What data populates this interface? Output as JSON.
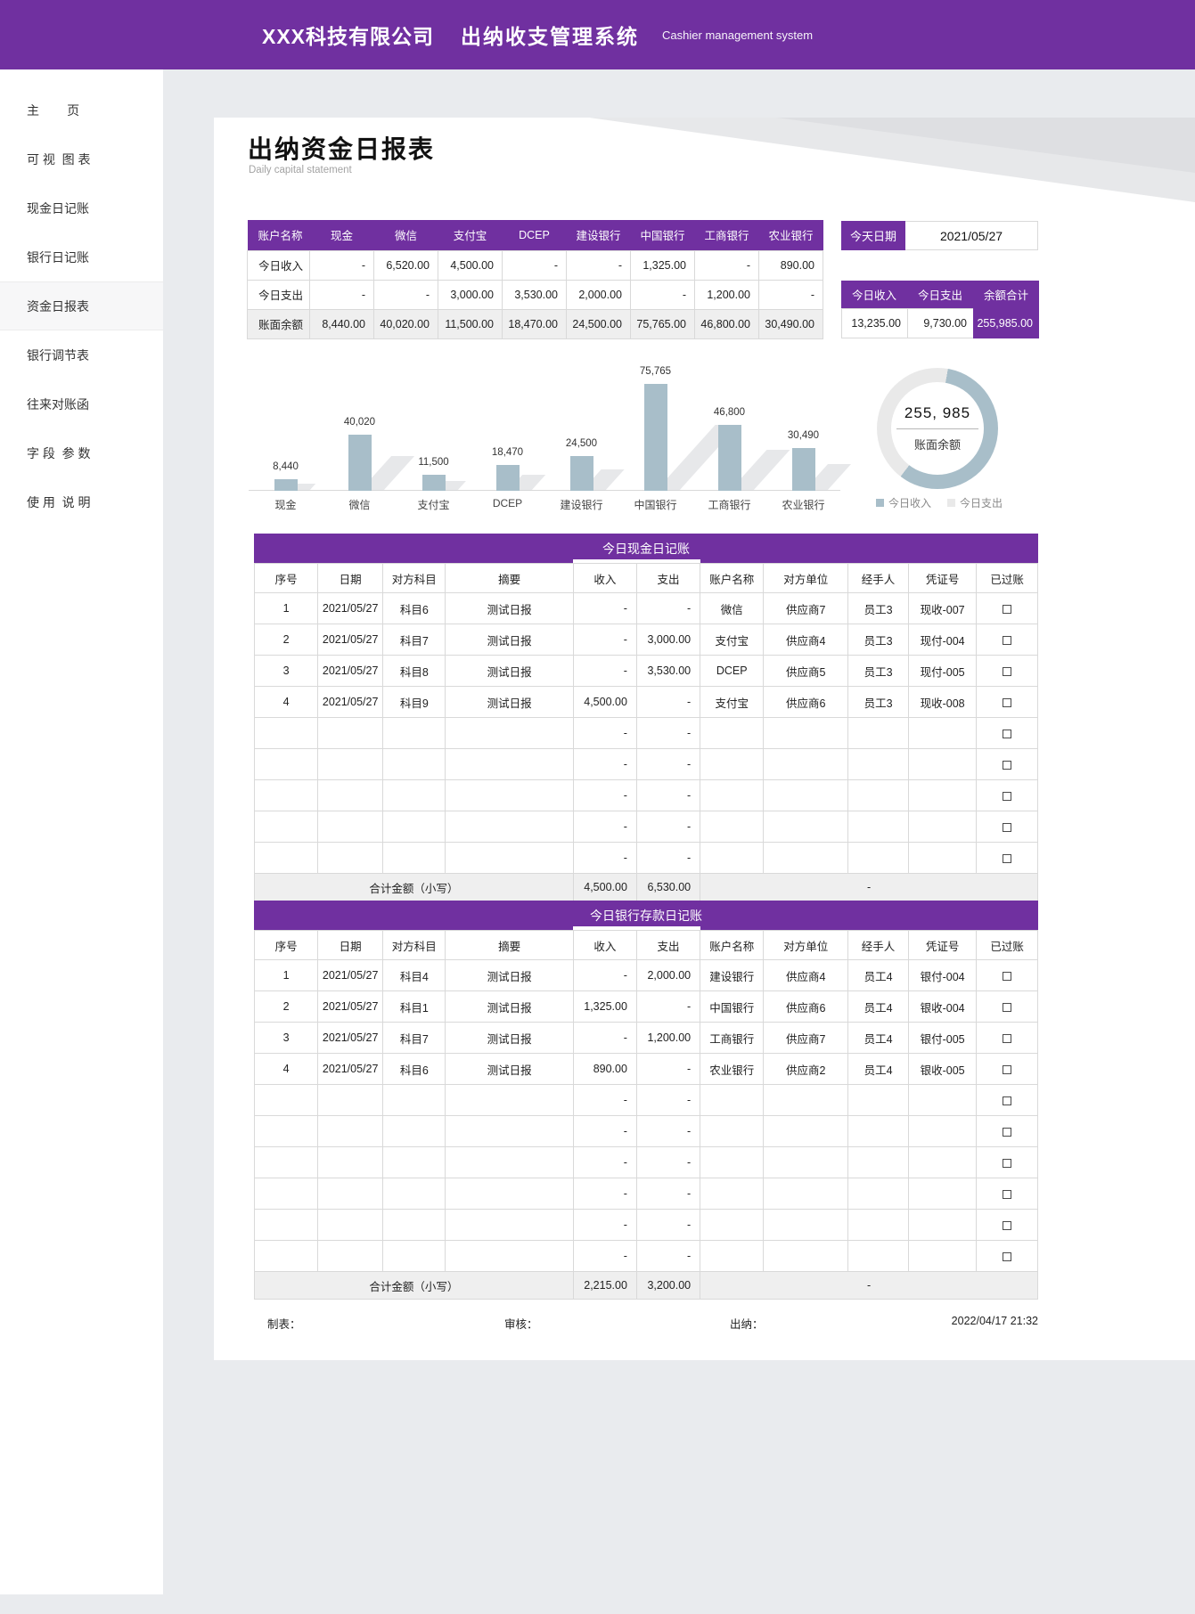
{
  "colors": {
    "accent": "#7030a0",
    "chart_blue": "#a8bec9",
    "chart_gray": "#e9e9e9",
    "shade": "#efefef",
    "border": "#d9d9d9"
  },
  "header": {
    "company": "XXX科技有限公司",
    "system": "出纳收支管理系统",
    "system_en": "Cashier management system"
  },
  "sidebar": {
    "items": [
      {
        "label": "主        页",
        "active": false
      },
      {
        "label": "可 视  图 表",
        "active": false
      },
      {
        "label": "现金日记账",
        "active": false
      },
      {
        "label": "银行日记账",
        "active": false
      },
      {
        "label": "资金日报表",
        "active": true
      },
      {
        "label": "银行调节表",
        "active": false
      },
      {
        "label": "往来对账函",
        "active": false
      },
      {
        "label": "字 段  参 数",
        "active": false
      },
      {
        "label": "使 用  说 明",
        "active": false
      }
    ]
  },
  "page": {
    "title": "出纳资金日报表",
    "subtitle": "Daily capital statement"
  },
  "summary_table": {
    "headers": [
      "账户名称",
      "现金",
      "微信",
      "支付宝",
      "DCEP",
      "建设银行",
      "中国银行",
      "工商银行",
      "农业银行"
    ],
    "rows": [
      {
        "label": "今日收入",
        "shaded": false,
        "values": [
          "-",
          "6,520.00",
          "4,500.00",
          "-",
          "-",
          "1,325.00",
          "-",
          "890.00"
        ]
      },
      {
        "label": "今日支出",
        "shaded": false,
        "values": [
          "-",
          "-",
          "3,000.00",
          "3,530.00",
          "2,000.00",
          "-",
          "1,200.00",
          "-"
        ]
      },
      {
        "label": "账面余额",
        "shaded": true,
        "values": [
          "8,440.00",
          "40,020.00",
          "11,500.00",
          "18,470.00",
          "24,500.00",
          "75,765.00",
          "46,800.00",
          "30,490.00"
        ]
      }
    ]
  },
  "date_panel": {
    "label": "今天日期",
    "value": "2021/05/27"
  },
  "totals_panel": {
    "headers": [
      "今日收入",
      "今日支出",
      "余额合计"
    ],
    "values": [
      "13,235.00",
      "9,730.00",
      "255,985.00"
    ]
  },
  "chart_data": [
    {
      "type": "bar",
      "title": "",
      "categories": [
        "现金",
        "微信",
        "支付宝",
        "DCEP",
        "建设银行",
        "中国银行",
        "工商银行",
        "农业银行"
      ],
      "values": [
        8440,
        40020,
        11500,
        18470,
        24500,
        75765,
        46800,
        30490
      ],
      "labels": [
        "8,440",
        "40,020",
        "11,500",
        "18,470",
        "24,500",
        "75,765",
        "46,800",
        "30,490"
      ],
      "xlabel": "",
      "ylabel": "",
      "ylim": [
        0,
        75765
      ],
      "grid": false,
      "legend": "none"
    },
    {
      "type": "pie",
      "subtype": "donut",
      "series": [
        {
          "name": "今日收入",
          "value": 13235
        },
        {
          "name": "今日支出",
          "value": 9730
        }
      ],
      "center_value": "255, 985",
      "center_label": "账面余额",
      "legend_position": "bottom"
    }
  ],
  "cash_table": {
    "banner": "今日现金日记账",
    "headers": [
      "序号",
      "日期",
      "对方科目",
      "摘要",
      "收入",
      "支出",
      "账户名称",
      "对方单位",
      "经手人",
      "凭证号",
      "已过账"
    ],
    "rows": [
      [
        "1",
        "2021/05/27",
        "科目6",
        "测试日报",
        "-",
        "-",
        "微信",
        "供应商7",
        "员工3",
        "现收-007"
      ],
      [
        "2",
        "2021/05/27",
        "科目7",
        "测试日报",
        "-",
        "3,000.00",
        "支付宝",
        "供应商4",
        "员工3",
        "现付-004"
      ],
      [
        "3",
        "2021/05/27",
        "科目8",
        "测试日报",
        "-",
        "3,530.00",
        "DCEP",
        "供应商5",
        "员工3",
        "现付-005"
      ],
      [
        "4",
        "2021/05/27",
        "科目9",
        "测试日报",
        "4,500.00",
        "-",
        "支付宝",
        "供应商6",
        "员工3",
        "现收-008"
      ]
    ],
    "empty_rows": 5,
    "empty_cell": "-",
    "totals": {
      "label": "合计金额（小写）",
      "income": "4,500.00",
      "expense": "6,530.00",
      "rest": "-"
    }
  },
  "bank_table": {
    "banner": "今日银行存款日记账",
    "headers": [
      "序号",
      "日期",
      "对方科目",
      "摘要",
      "收入",
      "支出",
      "账户名称",
      "对方单位",
      "经手人",
      "凭证号",
      "已过账"
    ],
    "rows": [
      [
        "1",
        "2021/05/27",
        "科目4",
        "测试日报",
        "-",
        "2,000.00",
        "建设银行",
        "供应商4",
        "员工4",
        "银付-004"
      ],
      [
        "2",
        "2021/05/27",
        "科目1",
        "测试日报",
        "1,325.00",
        "-",
        "中国银行",
        "供应商6",
        "员工4",
        "银收-004"
      ],
      [
        "3",
        "2021/05/27",
        "科目7",
        "测试日报",
        "-",
        "1,200.00",
        "工商银行",
        "供应商7",
        "员工4",
        "银付-005"
      ],
      [
        "4",
        "2021/05/27",
        "科目6",
        "测试日报",
        "890.00",
        "-",
        "农业银行",
        "供应商2",
        "员工4",
        "银收-005"
      ]
    ],
    "empty_rows": 6,
    "empty_cell": "-",
    "totals": {
      "label": "合计金额（小写）",
      "income": "2,215.00",
      "expense": "3,200.00",
      "rest": "-"
    }
  },
  "footer": {
    "maker": "制表：",
    "auditor": "审核：",
    "cashier": "出纳：",
    "datetime": "2022/04/17 21:32"
  }
}
